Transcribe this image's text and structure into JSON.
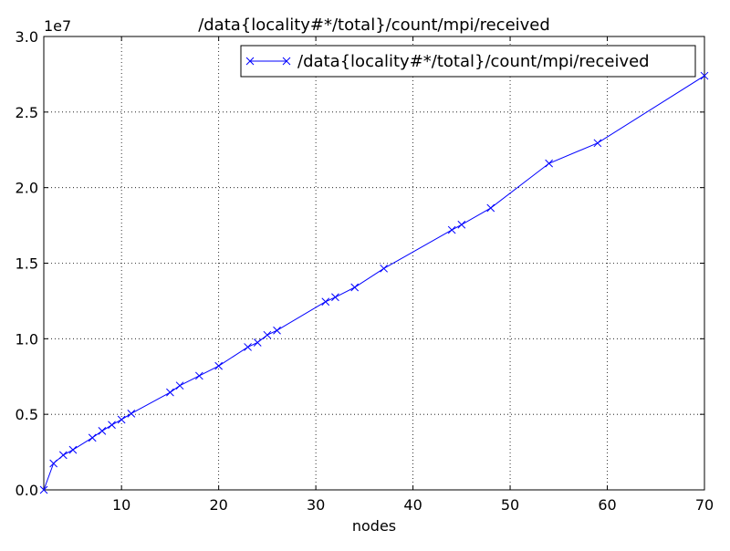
{
  "chart_data": {
    "type": "line",
    "title": "/data{locality#*/total}/count/mpi/received",
    "x_label": "nodes",
    "y_offset_label": "1e7",
    "x": [
      2,
      3,
      4,
      5,
      7,
      8,
      9,
      10,
      11,
      15,
      16,
      18,
      20,
      23,
      24,
      25,
      26,
      31,
      32,
      34,
      37,
      44,
      45,
      48,
      54,
      59,
      70
    ],
    "series": [
      {
        "name": "/data{locality#*/total}/count/mpi/received",
        "color": "#0000ff",
        "values": [
          0,
          0.175,
          0.23,
          0.265,
          0.345,
          0.39,
          0.43,
          0.465,
          0.505,
          0.645,
          0.69,
          0.755,
          0.82,
          0.945,
          0.975,
          1.025,
          1.055,
          1.245,
          1.275,
          1.34,
          1.465,
          1.72,
          1.755,
          1.865,
          2.16,
          2.295,
          2.74
        ]
      }
    ],
    "xlim": [
      2,
      70
    ],
    "xticks": [
      10,
      20,
      30,
      40,
      50,
      60,
      70
    ],
    "ylim": [
      0,
      3
    ],
    "yticks": [
      {
        "value": 0,
        "label": "0.0"
      },
      0.5,
      {
        "value": 1,
        "label": "1.0"
      },
      1.5,
      {
        "value": 2,
        "label": "2.0"
      },
      2.5,
      {
        "value": 3,
        "label": "3.0"
      }
    ],
    "grid": true,
    "legend": "upper right",
    "marker": "x"
  }
}
